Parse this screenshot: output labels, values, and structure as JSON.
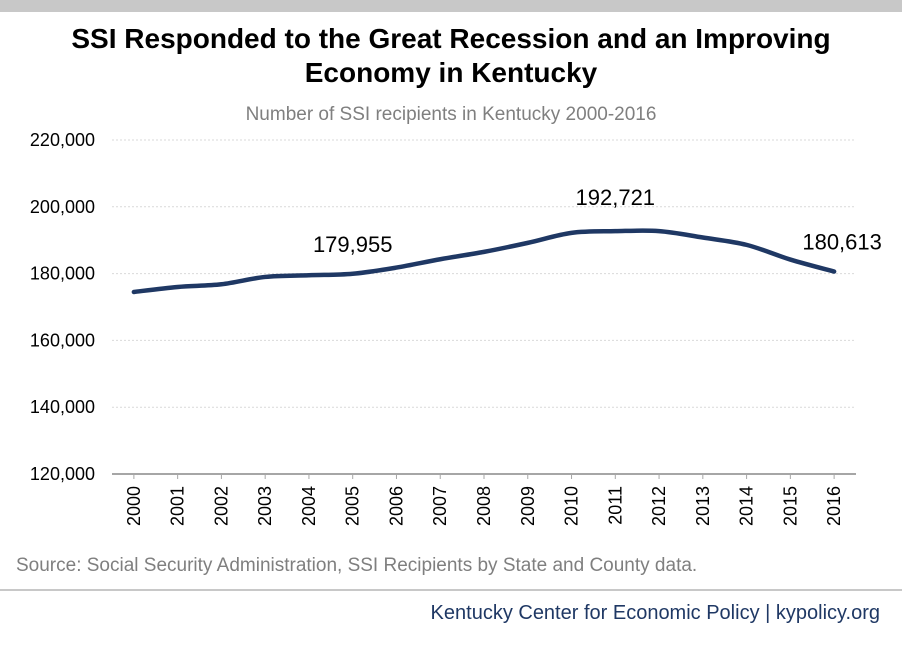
{
  "title_line1": "SSI Responded to the Great Recession and an Improving",
  "title_line2": "Economy in Kentucky",
  "subtitle": "Number  of SSI recipients in Kentucky 2000-2016",
  "source": "Source: Social Security Administration, SSI Recipients by State and County data.",
  "footer": "Kentucky Center for Economic Policy | kypolicy.org",
  "colors": {
    "line": "#1f3864",
    "grid": "#d9d9d9",
    "axis": "#a6a6a6",
    "text": "#000000",
    "muted": "#7f7f7f"
  },
  "chart_data": {
    "type": "line",
    "title": "SSI Responded to the Great Recession and an Improving Economy in Kentucky",
    "subtitle": "Number  of SSI recipients in Kentucky 2000-2016",
    "xlabel": "",
    "ylabel": "",
    "x": [
      "2000",
      "2001",
      "2002",
      "2003",
      "2004",
      "2005",
      "2006",
      "2007",
      "2008",
      "2009",
      "2010",
      "2011",
      "2012",
      "2013",
      "2014",
      "2015",
      "2016"
    ],
    "series": [
      {
        "values": [
          174500,
          176000,
          176800,
          179000,
          179500,
          179955,
          181800,
          184300,
          186500,
          189200,
          192200,
          192700,
          192721,
          190800,
          188600,
          184200,
          180613
        ]
      }
    ],
    "ylim": [
      120000,
      220000
    ],
    "yticks": [
      120000,
      140000,
      160000,
      180000,
      200000,
      220000
    ],
    "ytick_labels": [
      "120,000",
      "140,000",
      "160,000",
      "180,000",
      "200,000",
      "220,000"
    ],
    "grid": true,
    "annotations": [
      {
        "x": "2005",
        "label": "179,955"
      },
      {
        "x": "2011",
        "label": "192,721"
      },
      {
        "x": "2016",
        "label": "180,613"
      }
    ]
  }
}
